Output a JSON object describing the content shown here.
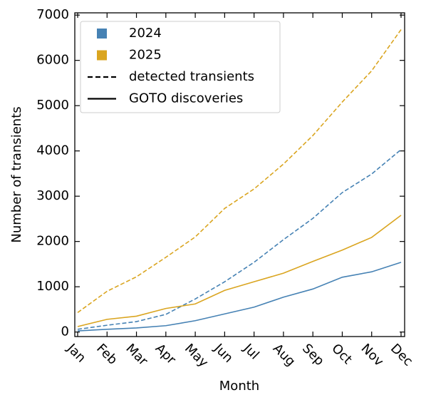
{
  "chart_data": {
    "type": "line",
    "x_label": "Month",
    "y_label": "Number of transients",
    "categories": [
      "Jan",
      "Feb",
      "Mar",
      "Apr",
      "May",
      "Jun",
      "Jul",
      "Aug",
      "Sep",
      "Oct",
      "Nov",
      "Dec"
    ],
    "ylim": [
      -100,
      7050
    ],
    "yticks": [
      0,
      1000,
      2000,
      3000,
      4000,
      5000,
      6000,
      7000
    ],
    "series": [
      {
        "color": "#4682b4",
        "style": "dashed",
        "values": [
          60,
          150,
          230,
          390,
          730,
          1110,
          1540,
          2040,
          2510,
          3080,
          3490,
          4030
        ]
      },
      {
        "color": "#daa520",
        "style": "dashed",
        "values": [
          430,
          900,
          1220,
          1650,
          2100,
          2730,
          3160,
          3710,
          4340,
          5080,
          5770,
          6680
        ]
      },
      {
        "color": "#4682b4",
        "style": "solid",
        "values": [
          25,
          60,
          90,
          140,
          250,
          400,
          550,
          770,
          950,
          1210,
          1330,
          1540
        ]
      },
      {
        "color": "#daa520",
        "style": "solid",
        "values": [
          120,
          280,
          350,
          520,
          620,
          920,
          1110,
          1300,
          1560,
          1810,
          2090,
          2580
        ]
      }
    ],
    "legend": [
      {
        "label": "2024",
        "marker": "square",
        "color": "#4682b4"
      },
      {
        "label": "2025",
        "marker": "square",
        "color": "#daa520"
      },
      {
        "label": "detected transients",
        "marker": "dashed",
        "color": "#000000"
      },
      {
        "label": "GOTO discoveries",
        "marker": "solid",
        "color": "#000000"
      }
    ],
    "legend_position": "upper-left"
  }
}
